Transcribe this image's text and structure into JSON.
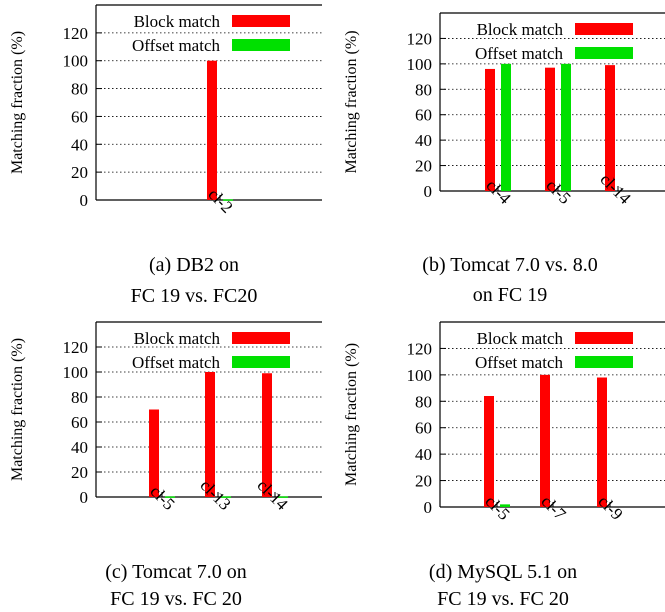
{
  "colors": {
    "block": "#ff0000",
    "offset": "#00e000",
    "grid": "#000000"
  },
  "legend": {
    "block_label": "Block match",
    "offset_label": "Offset match"
  },
  "chart_data": [
    {
      "type": "bar",
      "caption_line1": "(a) DB2 on",
      "caption_line2": "FC 19 vs. FC20",
      "ylabel": "Matching fraction (%)",
      "ylim": [
        0,
        140
      ],
      "yticks": [
        0,
        20,
        40,
        60,
        80,
        100,
        120
      ],
      "categories": [
        "cl-2"
      ],
      "series": [
        {
          "name": "Block match",
          "values": [
            100
          ]
        },
        {
          "name": "Offset match",
          "values": [
            0.5
          ]
        }
      ]
    },
    {
      "type": "bar",
      "caption_line1": "(b) Tomcat 7.0 vs. 8.0",
      "caption_line2": "on FC 19",
      "ylabel": "Matching fraction (%)",
      "ylim": [
        0,
        140
      ],
      "yticks": [
        0,
        20,
        40,
        60,
        80,
        100,
        120
      ],
      "categories": [
        "cl-4",
        "cl-5",
        "cl-14"
      ],
      "series": [
        {
          "name": "Block match",
          "values": [
            96,
            97,
            99
          ]
        },
        {
          "name": "Offset match",
          "values": [
            100,
            100,
            0
          ]
        }
      ]
    },
    {
      "type": "bar",
      "caption_line1": "(c) Tomcat 7.0 on",
      "caption_line2": "FC 19 vs. FC 20",
      "ylabel": "Matching fraction (%)",
      "ylim": [
        0,
        140
      ],
      "yticks": [
        0,
        20,
        40,
        60,
        80,
        100,
        120
      ],
      "categories": [
        "cl-5",
        "cl-13",
        "cl-14"
      ],
      "series": [
        {
          "name": "Block match",
          "values": [
            70,
            100,
            99
          ]
        },
        {
          "name": "Offset match",
          "values": [
            0.5,
            0.5,
            0.5
          ]
        }
      ]
    },
    {
      "type": "bar",
      "caption_line1": "(d) MySQL 5.1 on",
      "caption_line2": "FC 19 vs. FC 20",
      "ylabel": "Matching fraction (%)",
      "ylim": [
        0,
        140
      ],
      "yticks": [
        0,
        20,
        40,
        60,
        80,
        100,
        120
      ],
      "categories": [
        "cl-5",
        "cl-7",
        "cl-9"
      ],
      "series": [
        {
          "name": "Block match",
          "values": [
            84,
            100,
            98
          ]
        },
        {
          "name": "Offset match",
          "values": [
            2,
            0,
            0
          ]
        }
      ]
    }
  ]
}
